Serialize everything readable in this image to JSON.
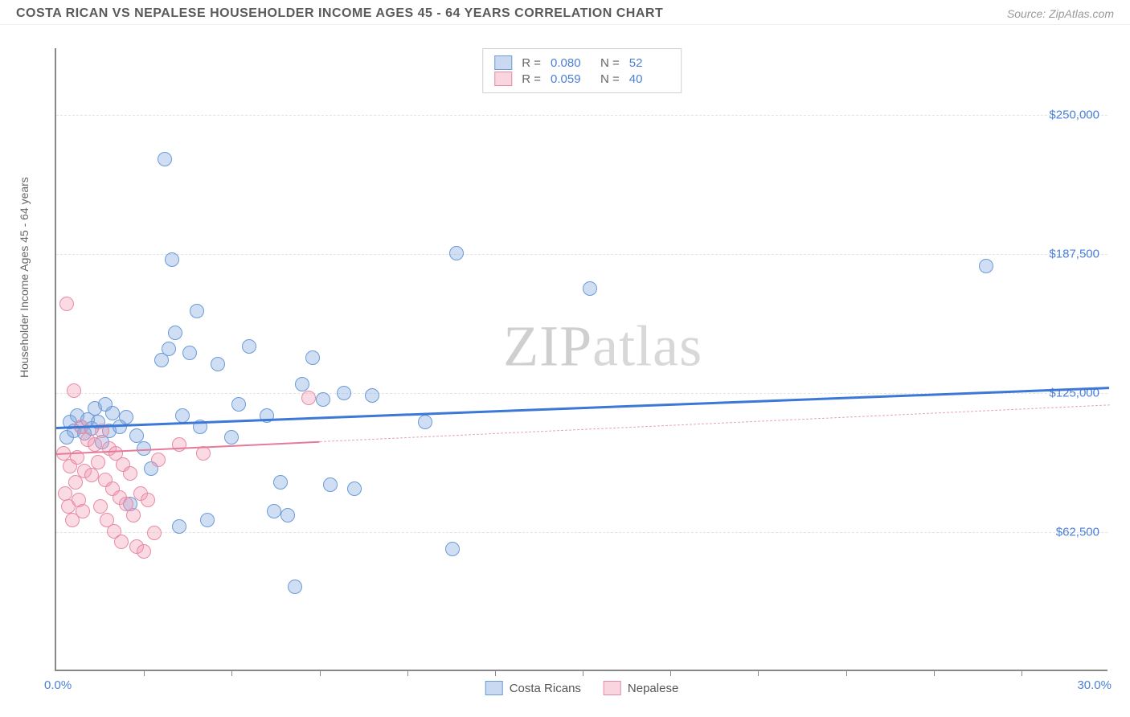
{
  "header": {
    "title": "COSTA RICAN VS NEPALESE HOUSEHOLDER INCOME AGES 45 - 64 YEARS CORRELATION CHART",
    "source": "Source: ZipAtlas.com"
  },
  "chart": {
    "type": "scatter",
    "ylabel": "Householder Income Ages 45 - 64 years",
    "watermark": "ZIPatlas",
    "background_color": "#ffffff",
    "grid_color": "#e5e5e5",
    "axis_color": "#888888",
    "tick_label_color": "#4a7fd8",
    "xlim": [
      0.0,
      30.0
    ],
    "ylim": [
      0,
      280000
    ],
    "x_tick_positions": [
      2.5,
      5.0,
      7.5,
      10.0,
      12.5,
      15.0,
      17.5,
      20.0,
      22.5,
      25.0,
      27.5
    ],
    "x_axis_labels": {
      "left": "0.0%",
      "right": "30.0%"
    },
    "y_gridlines": [
      {
        "value": 62500,
        "label": "$62,500"
      },
      {
        "value": 125000,
        "label": "$125,000"
      },
      {
        "value": 187500,
        "label": "$187,500"
      },
      {
        "value": 250000,
        "label": "$250,000"
      }
    ],
    "marker_radius": 9,
    "series": [
      {
        "name": "Costa Ricans",
        "color_fill": "rgba(120,160,220,0.35)",
        "color_stroke": "#6b9bd8",
        "trend_color": "#3b78d8",
        "R": "0.080",
        "N": "52",
        "trend": {
          "x1": 0.0,
          "y1": 110000,
          "x2": 30.0,
          "y2": 128000,
          "solid_until_x": 30.0
        },
        "points": [
          [
            0.3,
            105000
          ],
          [
            0.4,
            112000
          ],
          [
            0.5,
            108000
          ],
          [
            0.6,
            115000
          ],
          [
            0.7,
            110000
          ],
          [
            0.8,
            107000
          ],
          [
            0.9,
            113000
          ],
          [
            1.0,
            109000
          ],
          [
            1.1,
            118000
          ],
          [
            1.2,
            112000
          ],
          [
            1.3,
            103000
          ],
          [
            1.4,
            120000
          ],
          [
            1.5,
            108000
          ],
          [
            1.6,
            116000
          ],
          [
            1.8,
            110000
          ],
          [
            2.0,
            114000
          ],
          [
            2.1,
            75000
          ],
          [
            2.3,
            106000
          ],
          [
            2.5,
            100000
          ],
          [
            2.7,
            91000
          ],
          [
            3.0,
            140000
          ],
          [
            3.1,
            230000
          ],
          [
            3.2,
            145000
          ],
          [
            3.3,
            185000
          ],
          [
            3.4,
            152000
          ],
          [
            3.5,
            65000
          ],
          [
            3.6,
            115000
          ],
          [
            3.8,
            143000
          ],
          [
            4.0,
            162000
          ],
          [
            4.1,
            110000
          ],
          [
            4.3,
            68000
          ],
          [
            4.6,
            138000
          ],
          [
            5.0,
            105000
          ],
          [
            5.2,
            120000
          ],
          [
            5.5,
            146000
          ],
          [
            6.0,
            115000
          ],
          [
            6.2,
            72000
          ],
          [
            6.4,
            85000
          ],
          [
            6.6,
            70000
          ],
          [
            6.8,
            38000
          ],
          [
            7.0,
            129000
          ],
          [
            7.3,
            141000
          ],
          [
            7.6,
            122000
          ],
          [
            7.8,
            84000
          ],
          [
            8.2,
            125000
          ],
          [
            8.5,
            82000
          ],
          [
            9.0,
            124000
          ],
          [
            10.5,
            112000
          ],
          [
            11.3,
            55000
          ],
          [
            11.4,
            188000
          ],
          [
            15.2,
            172000
          ],
          [
            26.5,
            182000
          ]
        ]
      },
      {
        "name": "Nepalese",
        "color_fill": "rgba(240,150,175,0.35)",
        "color_stroke": "#e88ba5",
        "trend_color": "#e67a99",
        "R": "0.059",
        "N": "40",
        "trend": {
          "x1": 0.0,
          "y1": 98000,
          "x2": 30.0,
          "y2": 120000,
          "solid_until_x": 7.5
        },
        "points": [
          [
            0.2,
            98000
          ],
          [
            0.3,
            165000
          ],
          [
            0.4,
            92000
          ],
          [
            0.5,
            126000
          ],
          [
            0.6,
            96000
          ],
          [
            0.7,
            110000
          ],
          [
            0.8,
            90000
          ],
          [
            0.9,
            104000
          ],
          [
            1.0,
            88000
          ],
          [
            1.1,
            102000
          ],
          [
            1.2,
            94000
          ],
          [
            1.3,
            108000
          ],
          [
            1.4,
            86000
          ],
          [
            1.5,
            100000
          ],
          [
            1.6,
            82000
          ],
          [
            1.7,
            98000
          ],
          [
            1.8,
            78000
          ],
          [
            1.9,
            93000
          ],
          [
            2.0,
            75000
          ],
          [
            2.1,
            89000
          ],
          [
            2.2,
            70000
          ],
          [
            2.3,
            56000
          ],
          [
            2.4,
            80000
          ],
          [
            2.5,
            54000
          ],
          [
            2.6,
            77000
          ],
          [
            2.8,
            62000
          ],
          [
            0.25,
            80000
          ],
          [
            0.35,
            74000
          ],
          [
            0.45,
            68000
          ],
          [
            0.55,
            85000
          ],
          [
            0.65,
            77000
          ],
          [
            0.75,
            72000
          ],
          [
            1.25,
            74000
          ],
          [
            1.45,
            68000
          ],
          [
            1.65,
            63000
          ],
          [
            1.85,
            58000
          ],
          [
            2.9,
            95000
          ],
          [
            3.5,
            102000
          ],
          [
            4.2,
            98000
          ],
          [
            7.2,
            123000
          ]
        ]
      }
    ],
    "stats_legend": {
      "rows": [
        {
          "series_idx": 0,
          "R_label": "R =",
          "N_label": "N ="
        },
        {
          "series_idx": 1,
          "R_label": "R =",
          "N_label": "N ="
        }
      ]
    },
    "bottom_legend": [
      {
        "series_idx": 0
      },
      {
        "series_idx": 1
      }
    ]
  }
}
